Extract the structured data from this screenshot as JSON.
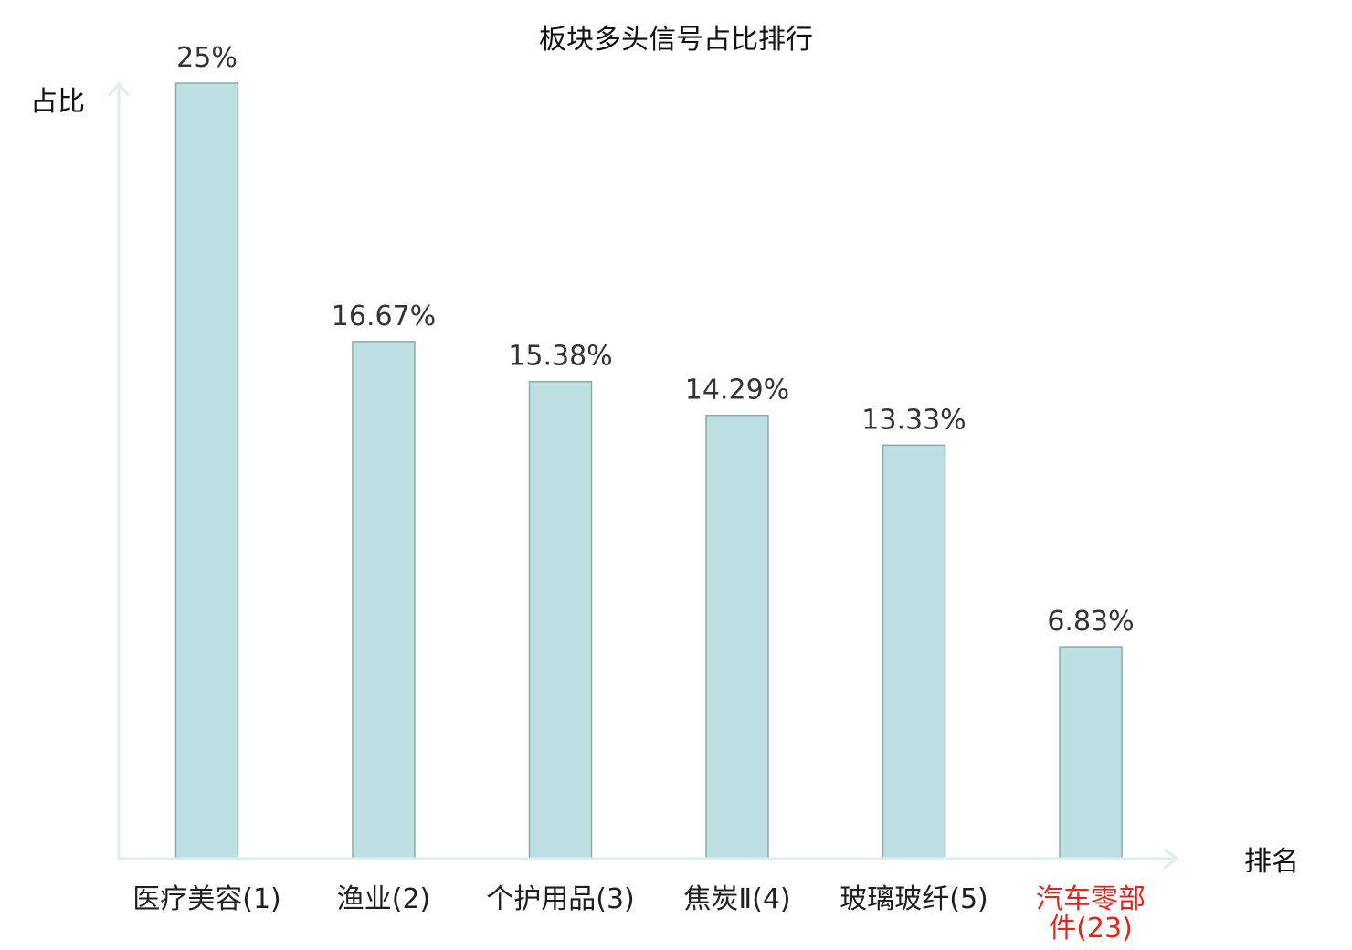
{
  "chart_data": {
    "type": "bar",
    "title": "板块多头信号占比排行",
    "xlabel": "排名",
    "ylabel": "占比",
    "categories": [
      "医疗美容(1)",
      "渔业(2)",
      "个护用品(3)",
      "焦炭Ⅱ(4)",
      "玻璃玻纤(5)",
      "汽车零部件(23)"
    ],
    "values": [
      25,
      16.67,
      15.38,
      14.29,
      13.33,
      6.83
    ],
    "value_unit": "%",
    "ylim": [
      0,
      25
    ],
    "grid": false,
    "legend": false,
    "colors": {
      "bar_fill": "#bde0e3",
      "bar_stroke": "#8ea9ac",
      "axis": "#dcefec",
      "value_label": "#333333"
    },
    "label_colors": [
      "#1f1f1f",
      "#1f1f1f",
      "#1f1f1f",
      "#1f1f1f",
      "#1f1f1f",
      "#e3241d"
    ]
  }
}
